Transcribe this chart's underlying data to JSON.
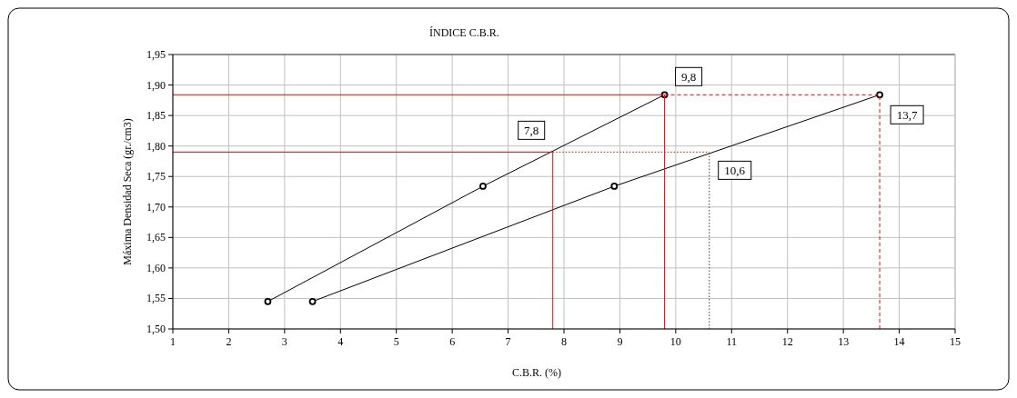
{
  "chart_data": {
    "type": "line",
    "title": "ÍNDICE C.B.R.",
    "xlabel": "C.B.R. (%)",
    "ylabel": "Máxima Densidad Seca (gr./cm3)",
    "xlim": [
      1,
      15
    ],
    "xticks": [
      1,
      2,
      3,
      4,
      5,
      6,
      7,
      8,
      9,
      10,
      11,
      12,
      13,
      14,
      15
    ],
    "ylim": [
      1.5,
      1.95
    ],
    "yticks": [
      {
        "value": 1.5,
        "label": "1,50"
      },
      {
        "value": 1.55,
        "label": "1,55"
      },
      {
        "value": 1.6,
        "label": "1,60"
      },
      {
        "value": 1.65,
        "label": "1,65"
      },
      {
        "value": 1.7,
        "label": "1,70"
      },
      {
        "value": 1.75,
        "label": "1,75"
      },
      {
        "value": 1.8,
        "label": "1,80"
      },
      {
        "value": 1.85,
        "label": "1,85"
      },
      {
        "value": 1.9,
        "label": "1,90"
      },
      {
        "value": 1.95,
        "label": "1,95"
      }
    ],
    "grid": true,
    "series": [
      {
        "color": "#000000",
        "x": [
          2.7,
          6.55,
          9.8
        ],
        "values": [
          1.545,
          1.734,
          1.884
        ],
        "marker": "circle",
        "line_style": "solid"
      },
      {
        "color": "#000000",
        "x": [
          3.5,
          8.9,
          13.65
        ],
        "values": [
          1.545,
          1.734,
          1.884
        ],
        "marker": "circle",
        "line_style": "solid"
      },
      {
        "color": "#ff0000",
        "x": [
          1,
          9.8
        ],
        "values": [
          1.884,
          1.884
        ],
        "marker": "none",
        "line_style": "solid"
      },
      {
        "color": "#ff0000",
        "x": [
          9.8,
          13.65
        ],
        "values": [
          1.884,
          1.884
        ],
        "marker": "none",
        "line_style": "dashed"
      },
      {
        "color": "#ff0000",
        "x": [
          1,
          7.8
        ],
        "values": [
          1.79,
          1.79
        ],
        "marker": "none",
        "line_style": "solid"
      },
      {
        "color": "#ff0000",
        "x": [
          7.8,
          10.6
        ],
        "values": [
          1.79,
          1.79
        ],
        "marker": "none",
        "line_style": "dotted"
      },
      {
        "color": "#ff0000",
        "x": [
          7.8,
          7.8
        ],
        "values": [
          1.5,
          1.79
        ],
        "marker": "none",
        "line_style": "solid"
      },
      {
        "color": "#ff0000",
        "x": [
          9.8,
          9.8
        ],
        "values": [
          1.5,
          1.884
        ],
        "marker": "none",
        "line_style": "solid"
      },
      {
        "color": "#ff0000",
        "x": [
          13.65,
          13.65
        ],
        "values": [
          1.5,
          1.884
        ],
        "marker": "none",
        "line_style": "dashed"
      },
      {
        "color": "#404040",
        "x": [
          10.6,
          10.6
        ],
        "values": [
          1.5,
          1.79
        ],
        "marker": "none",
        "line_style": "dotted"
      }
    ],
    "annotations": [
      {
        "text": "9,8",
        "x": 9.8,
        "y": 1.884
      },
      {
        "text": "7,8",
        "x": 7.8,
        "y": 1.79
      },
      {
        "text": "10,6",
        "x": 10.6,
        "y": 1.79
      },
      {
        "text": "13,7",
        "x": 13.65,
        "y": 1.884
      }
    ]
  }
}
